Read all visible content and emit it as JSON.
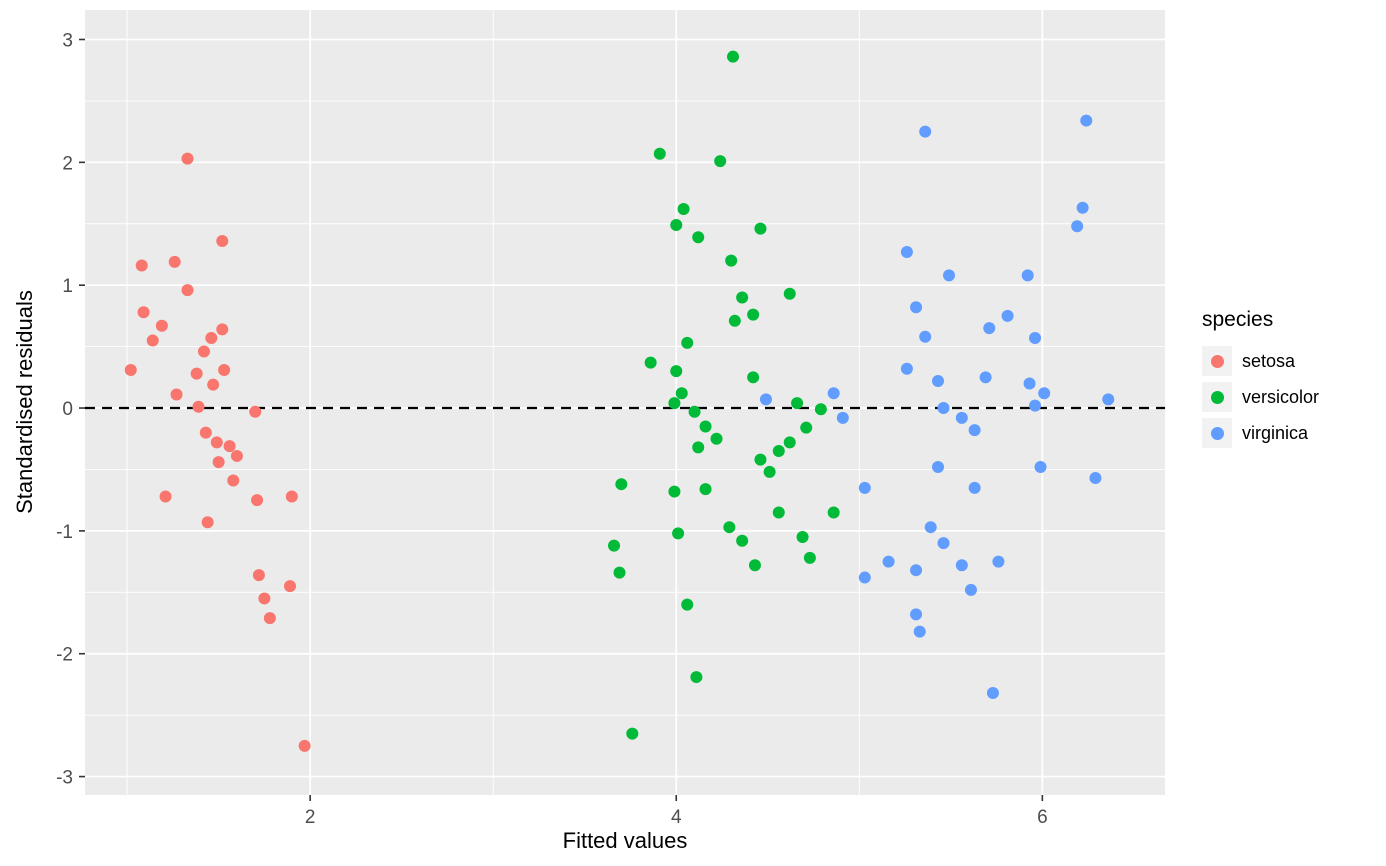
{
  "figure": {
    "background": "#FFFFFF",
    "panel_background": "#EBEBEB",
    "grid_color": "#FFFFFF",
    "tick_label_color": "#4D4D4D",
    "tick_mark_color": "#333333"
  },
  "chart_data": {
    "type": "scatter",
    "title": "",
    "xlabel": "Fitted values",
    "ylabel": "Standardised residuals",
    "xlim": [
      0.77,
      6.67
    ],
    "ylim": [
      -3.15,
      3.24
    ],
    "x_major_ticks": [
      2,
      4,
      6
    ],
    "x_minor_ticks": [
      1,
      3,
      5
    ],
    "y_major_ticks": [
      -3,
      -2,
      -1,
      0,
      1,
      2,
      3
    ],
    "y_minor_ticks": [
      -2.5,
      -1.5,
      -0.5,
      0.5,
      1.5,
      2.5
    ],
    "grid": true,
    "reference_line": {
      "y": 0,
      "style": "dashed",
      "color": "#000000"
    },
    "legend": {
      "title": "species",
      "position": "right"
    },
    "point_radius": 6,
    "series": [
      {
        "name": "setosa",
        "color": "#F8766D",
        "points": [
          [
            1.02,
            0.31
          ],
          [
            1.08,
            1.16
          ],
          [
            1.09,
            0.78
          ],
          [
            1.14,
            0.55
          ],
          [
            1.19,
            0.67
          ],
          [
            1.21,
            -0.72
          ],
          [
            1.26,
            1.19
          ],
          [
            1.27,
            0.11
          ],
          [
            1.33,
            2.03
          ],
          [
            1.33,
            0.96
          ],
          [
            1.38,
            0.28
          ],
          [
            1.39,
            0.01
          ],
          [
            1.42,
            0.46
          ],
          [
            1.43,
            -0.2
          ],
          [
            1.44,
            -0.93
          ],
          [
            1.46,
            0.57
          ],
          [
            1.47,
            0.19
          ],
          [
            1.49,
            -0.28
          ],
          [
            1.5,
            -0.44
          ],
          [
            1.52,
            1.36
          ],
          [
            1.52,
            0.64
          ],
          [
            1.53,
            0.31
          ],
          [
            1.56,
            -0.31
          ],
          [
            1.58,
            -0.59
          ],
          [
            1.6,
            -0.39
          ],
          [
            1.7,
            -0.03
          ],
          [
            1.71,
            -0.75
          ],
          [
            1.72,
            -1.36
          ],
          [
            1.75,
            -1.55
          ],
          [
            1.78,
            -1.71
          ],
          [
            1.89,
            -1.45
          ],
          [
            1.9,
            -0.72
          ],
          [
            1.97,
            -2.75
          ]
        ]
      },
      {
        "name": "versicolor",
        "color": "#00BA38",
        "points": [
          [
            3.91,
            2.07
          ],
          [
            4.31,
            2.86
          ],
          [
            4.24,
            2.01
          ],
          [
            4.04,
            1.62
          ],
          [
            4.0,
            1.49
          ],
          [
            4.12,
            1.39
          ],
          [
            4.3,
            1.2
          ],
          [
            4.46,
            1.46
          ],
          [
            4.36,
            0.9
          ],
          [
            4.62,
            0.93
          ],
          [
            4.32,
            0.71
          ],
          [
            4.42,
            0.76
          ],
          [
            4.06,
            0.53
          ],
          [
            3.86,
            0.37
          ],
          [
            4.0,
            0.3
          ],
          [
            4.03,
            0.12
          ],
          [
            3.99,
            0.04
          ],
          [
            4.42,
            0.25
          ],
          [
            4.66,
            0.04
          ],
          [
            4.79,
            -0.01
          ],
          [
            4.1,
            -0.03
          ],
          [
            4.16,
            -0.15
          ],
          [
            4.22,
            -0.25
          ],
          [
            4.12,
            -0.32
          ],
          [
            4.46,
            -0.42
          ],
          [
            4.56,
            -0.35
          ],
          [
            4.51,
            -0.52
          ],
          [
            4.62,
            -0.28
          ],
          [
            4.71,
            -0.16
          ],
          [
            3.7,
            -0.62
          ],
          [
            3.99,
            -0.68
          ],
          [
            4.16,
            -0.66
          ],
          [
            4.56,
            -0.85
          ],
          [
            4.86,
            -0.85
          ],
          [
            3.66,
            -1.12
          ],
          [
            4.01,
            -1.02
          ],
          [
            4.29,
            -0.97
          ],
          [
            4.36,
            -1.08
          ],
          [
            4.43,
            -1.28
          ],
          [
            4.69,
            -1.05
          ],
          [
            4.73,
            -1.22
          ],
          [
            3.69,
            -1.34
          ],
          [
            4.06,
            -1.6
          ],
          [
            4.11,
            -2.19
          ],
          [
            3.76,
            -2.65
          ]
        ]
      },
      {
        "name": "virginica",
        "color": "#619CFF",
        "points": [
          [
            5.36,
            2.25
          ],
          [
            6.24,
            2.34
          ],
          [
            6.22,
            1.63
          ],
          [
            6.19,
            1.48
          ],
          [
            5.26,
            1.27
          ],
          [
            5.92,
            1.08
          ],
          [
            5.49,
            1.08
          ],
          [
            5.31,
            0.82
          ],
          [
            5.81,
            0.75
          ],
          [
            5.71,
            0.65
          ],
          [
            5.36,
            0.58
          ],
          [
            5.96,
            0.57
          ],
          [
            5.26,
            0.32
          ],
          [
            5.43,
            0.22
          ],
          [
            5.69,
            0.25
          ],
          [
            5.93,
            0.2
          ],
          [
            6.01,
            0.12
          ],
          [
            4.86,
            0.12
          ],
          [
            4.49,
            0.07
          ],
          [
            5.96,
            0.02
          ],
          [
            5.46,
            0.0
          ],
          [
            6.36,
            0.07
          ],
          [
            4.91,
            -0.08
          ],
          [
            5.56,
            -0.08
          ],
          [
            5.63,
            -0.18
          ],
          [
            5.99,
            -0.48
          ],
          [
            5.43,
            -0.48
          ],
          [
            6.29,
            -0.57
          ],
          [
            5.63,
            -0.65
          ],
          [
            5.03,
            -0.65
          ],
          [
            5.16,
            -1.25
          ],
          [
            5.03,
            -1.38
          ],
          [
            5.31,
            -1.32
          ],
          [
            5.46,
            -1.1
          ],
          [
            5.39,
            -0.97
          ],
          [
            5.56,
            -1.28
          ],
          [
            5.61,
            -1.48
          ],
          [
            5.76,
            -1.25
          ],
          [
            5.31,
            -1.68
          ],
          [
            5.33,
            -1.82
          ],
          [
            5.73,
            -2.32
          ]
        ]
      }
    ]
  }
}
